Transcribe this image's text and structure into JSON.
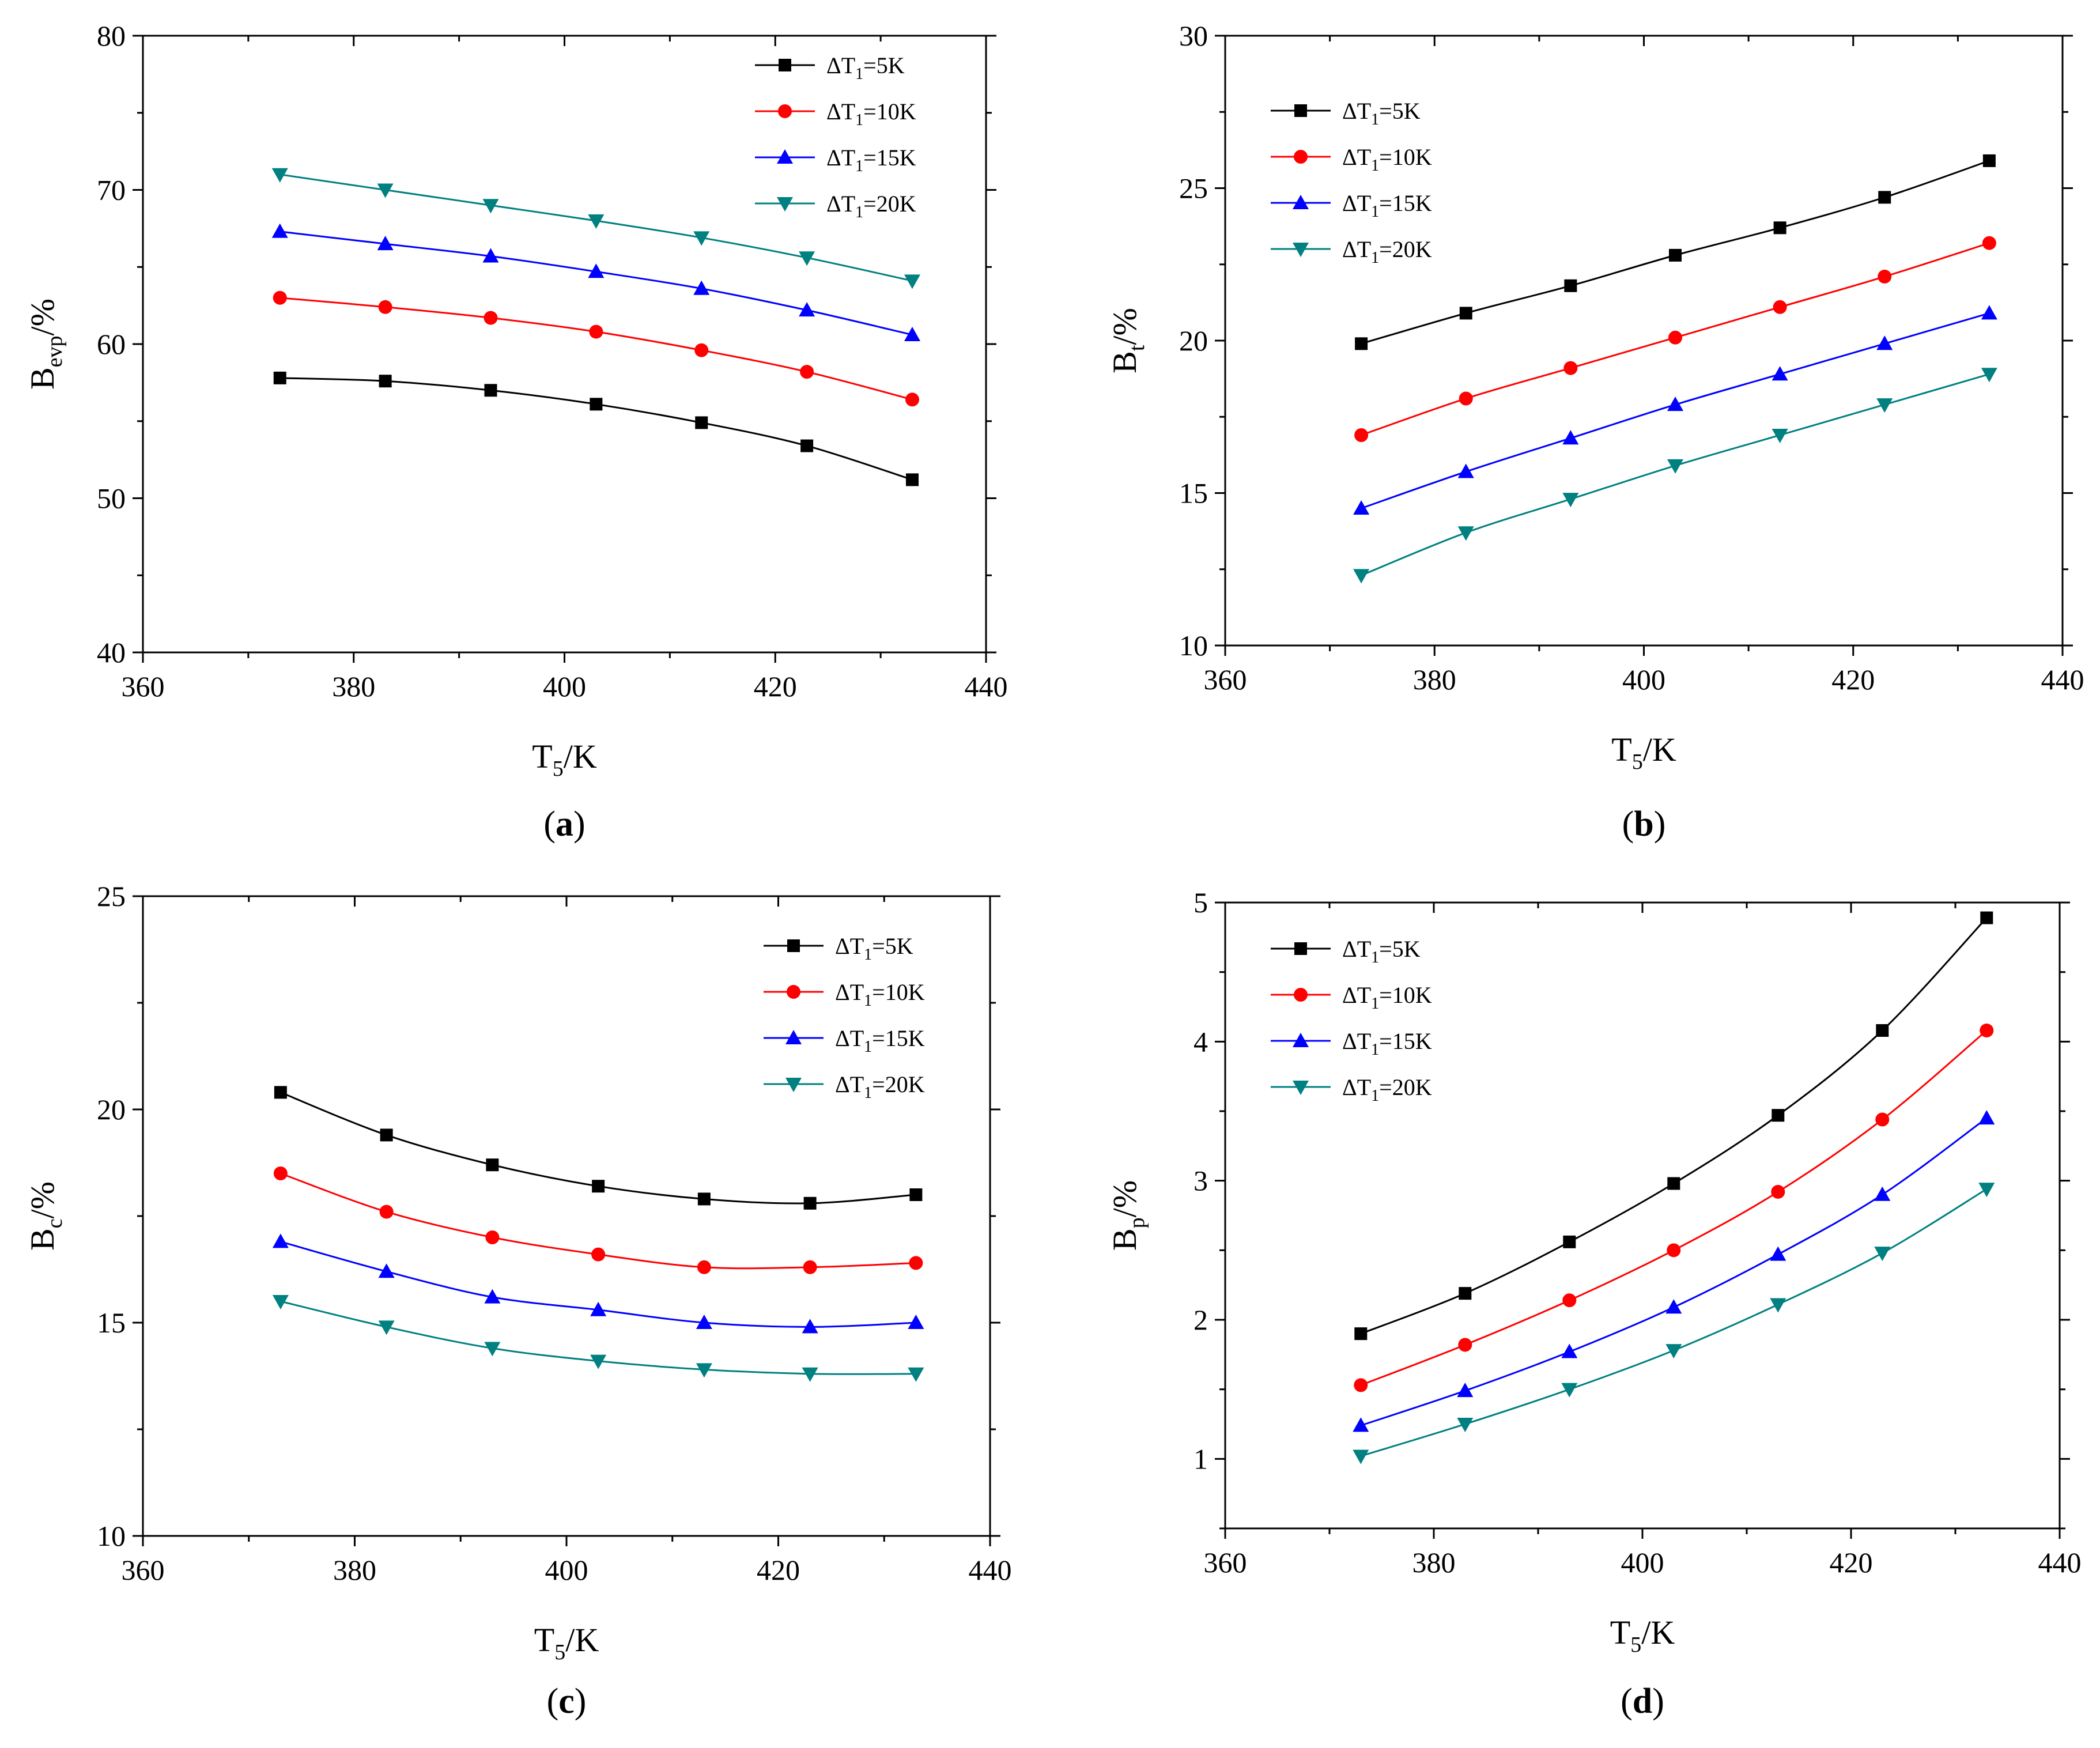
{
  "colors": {
    "series": [
      "#000000",
      "#ff0000",
      "#0000ff",
      "#008080"
    ]
  },
  "chart_data": [
    {
      "type": "line",
      "panel_label": {
        "open": "(",
        "letter": "a",
        "close": ")"
      },
      "xlabel": {
        "main": "T",
        "sub": "5",
        "rest": "/K"
      },
      "ylabel": {
        "main": "B",
        "sub": "evp",
        "rest": "/%"
      },
      "xlim": [
        360,
        440
      ],
      "ylim": [
        40,
        80
      ],
      "xticks": [
        360,
        380,
        400,
        420,
        440
      ],
      "yticks": [
        40,
        50,
        60,
        70,
        80
      ],
      "legend": "top-right",
      "x": [
        373,
        383,
        393,
        403,
        413,
        423,
        433
      ],
      "series": [
        {
          "prefix": "ΔT",
          "sub": "1",
          "suffix": "=5K",
          "marker": "square",
          "values": [
            57.8,
            57.6,
            57.0,
            56.1,
            54.9,
            53.4,
            51.2
          ]
        },
        {
          "prefix": "ΔT",
          "sub": "1",
          "suffix": "=10K",
          "marker": "circle",
          "values": [
            63.0,
            62.4,
            61.7,
            60.8,
            59.6,
            58.2,
            56.4
          ]
        },
        {
          "prefix": "ΔT",
          "sub": "1",
          "suffix": "=15K",
          "marker": "triangle-up",
          "values": [
            67.3,
            66.5,
            65.7,
            64.7,
            63.6,
            62.2,
            60.6
          ]
        },
        {
          "prefix": "ΔT",
          "sub": "1",
          "suffix": "=20K",
          "marker": "triangle-down",
          "values": [
            71.0,
            70.0,
            69.0,
            68.0,
            66.9,
            65.6,
            64.1
          ]
        }
      ]
    },
    {
      "type": "line",
      "panel_label": {
        "open": "(",
        "letter": "b",
        "close": ")"
      },
      "xlabel": {
        "main": "T",
        "sub": "5",
        "rest": "/K"
      },
      "ylabel": {
        "main": "B",
        "sub": "t",
        "rest": "/%"
      },
      "xlim": [
        360,
        440
      ],
      "ylim": [
        10,
        30
      ],
      "xticks": [
        360,
        380,
        400,
        420,
        440
      ],
      "yticks": [
        10,
        15,
        20,
        25,
        30
      ],
      "legend": "top-left",
      "x": [
        373,
        383,
        393,
        403,
        413,
        423,
        433
      ],
      "series": [
        {
          "prefix": "ΔT",
          "sub": "1",
          "suffix": "=5K",
          "marker": "square",
          "values": [
            19.9,
            20.9,
            21.8,
            22.8,
            23.7,
            24.7,
            25.9
          ]
        },
        {
          "prefix": "ΔT",
          "sub": "1",
          "suffix": "=10K",
          "marker": "circle",
          "values": [
            16.9,
            18.1,
            19.1,
            20.1,
            21.1,
            22.1,
            23.2
          ]
        },
        {
          "prefix": "ΔT",
          "sub": "1",
          "suffix": "=15K",
          "marker": "triangle-up",
          "values": [
            14.5,
            15.7,
            16.8,
            17.9,
            18.9,
            19.9,
            20.9
          ]
        },
        {
          "prefix": "ΔT",
          "sub": "1",
          "suffix": "=20K",
          "marker": "triangle-down",
          "values": [
            12.3,
            13.7,
            14.8,
            15.9,
            16.9,
            17.9,
            18.9
          ]
        }
      ]
    },
    {
      "type": "line",
      "panel_label": {
        "open": "(",
        "letter": "c",
        "close": ")"
      },
      "xlabel": {
        "main": "T",
        "sub": "5",
        "rest": "/K"
      },
      "ylabel": {
        "main": "B",
        "sub": "c",
        "rest": "/%"
      },
      "xlim": [
        360,
        440
      ],
      "ylim": [
        10,
        25
      ],
      "xticks": [
        360,
        380,
        400,
        420,
        440
      ],
      "yticks": [
        10,
        15,
        20,
        25
      ],
      "legend": "top-right",
      "x": [
        373,
        383,
        393,
        403,
        413,
        423,
        433
      ],
      "series": [
        {
          "prefix": "ΔT",
          "sub": "1",
          "suffix": "=5K",
          "marker": "square",
          "values": [
            20.4,
            19.4,
            18.7,
            18.2,
            17.9,
            17.8,
            18.0
          ]
        },
        {
          "prefix": "ΔT",
          "sub": "1",
          "suffix": "=10K",
          "marker": "circle",
          "values": [
            18.5,
            17.6,
            17.0,
            16.6,
            16.3,
            16.3,
            16.4
          ]
        },
        {
          "prefix": "ΔT",
          "sub": "1",
          "suffix": "=15K",
          "marker": "triangle-up",
          "values": [
            16.9,
            16.2,
            15.6,
            15.3,
            15.0,
            14.9,
            15.0
          ]
        },
        {
          "prefix": "ΔT",
          "sub": "1",
          "suffix": "=20K",
          "marker": "triangle-down",
          "values": [
            15.5,
            14.9,
            14.4,
            14.1,
            13.9,
            13.8,
            13.8
          ]
        }
      ]
    },
    {
      "type": "line",
      "panel_label": {
        "open": "(",
        "letter": "d",
        "close": ")"
      },
      "xlabel": {
        "main": "T",
        "sub": "5",
        "rest": "/K"
      },
      "ylabel": {
        "main": "B",
        "sub": "p",
        "rest": "/%"
      },
      "xlim": [
        360,
        440
      ],
      "ylim": [
        0.5,
        5
      ],
      "xticks": [
        360,
        380,
        400,
        420,
        440
      ],
      "yticks": [
        1,
        2,
        3,
        4,
        5
      ],
      "legend": "top-left",
      "x": [
        373,
        383,
        393,
        403,
        413,
        423,
        433
      ],
      "series": [
        {
          "prefix": "ΔT",
          "sub": "1",
          "suffix": "=5K",
          "marker": "square",
          "values": [
            1.9,
            2.19,
            2.56,
            2.98,
            3.47,
            4.08,
            4.89
          ]
        },
        {
          "prefix": "ΔT",
          "sub": "1",
          "suffix": "=10K",
          "marker": "circle",
          "values": [
            1.53,
            1.82,
            2.14,
            2.5,
            2.92,
            3.44,
            4.08
          ]
        },
        {
          "prefix": "ΔT",
          "sub": "1",
          "suffix": "=15K",
          "marker": "triangle-up",
          "values": [
            1.24,
            1.49,
            1.77,
            2.09,
            2.47,
            2.9,
            3.45
          ]
        },
        {
          "prefix": "ΔT",
          "sub": "1",
          "suffix": "=20K",
          "marker": "triangle-down",
          "values": [
            1.02,
            1.25,
            1.5,
            1.78,
            2.11,
            2.48,
            2.94
          ]
        }
      ]
    }
  ]
}
